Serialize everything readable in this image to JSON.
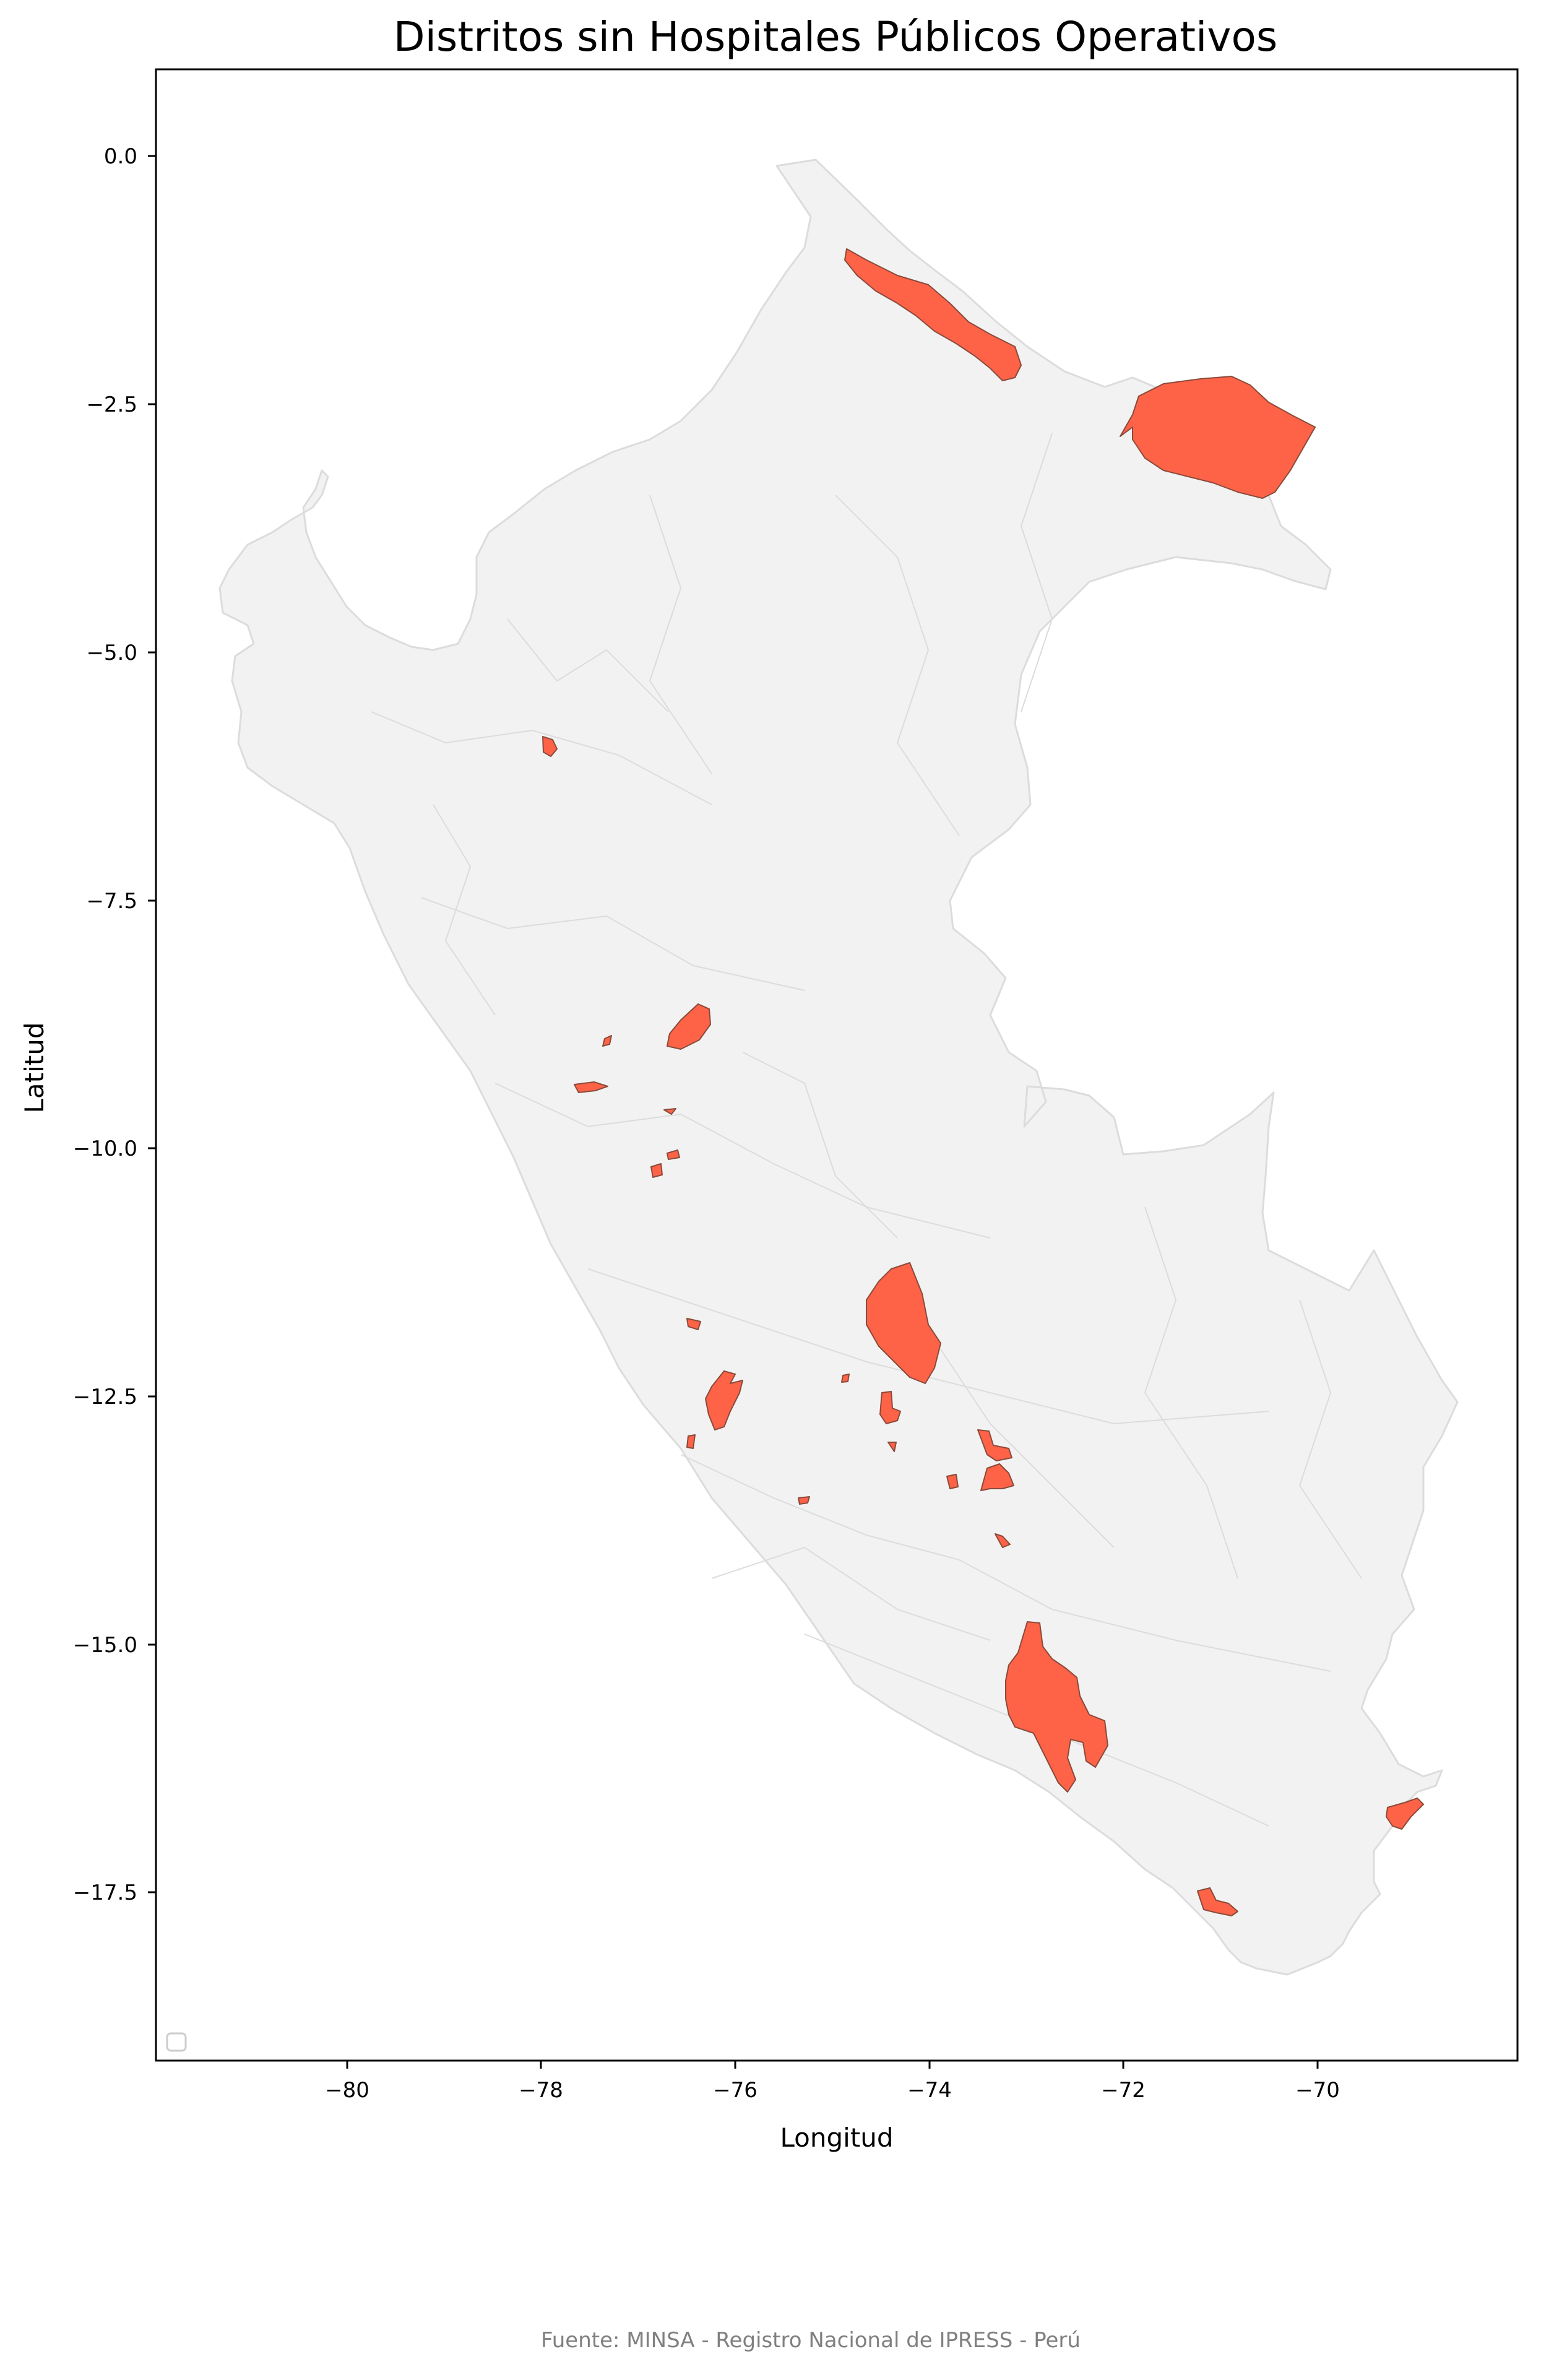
{
  "title": "Distritos sin Hospitales Públicos Operativos",
  "xlabel": "Longitud",
  "ylabel": "Latitud",
  "source": "Fuente: MINSA - Registro Nacional de IPRESS - Perú",
  "map": {
    "type": "choropleth",
    "projection": "plate-carree (lon/lat)",
    "xlim": [
      -81.95,
      -68.0
    ],
    "ylim": [
      -19.15,
      0.88
    ],
    "x_ticks": [
      {
        "value": -80,
        "label": "−80"
      },
      {
        "value": -78,
        "label": "−78"
      },
      {
        "value": -76,
        "label": "−76"
      },
      {
        "value": -74,
        "label": "−74"
      },
      {
        "value": -72,
        "label": "−72"
      },
      {
        "value": -70,
        "label": "−70"
      }
    ],
    "y_ticks": [
      {
        "value": 0.0,
        "label": "0.0"
      },
      {
        "value": -2.5,
        "label": "−2.5"
      },
      {
        "value": -5.0,
        "label": "−5.0"
      },
      {
        "value": -7.5,
        "label": "−7.5"
      },
      {
        "value": -10.0,
        "label": "−10.0"
      },
      {
        "value": -12.5,
        "label": "−12.5"
      },
      {
        "value": -15.0,
        "label": "−15.0"
      },
      {
        "value": -17.5,
        "label": "−17.5"
      }
    ],
    "colors": {
      "base_fill": "#f2f2f2",
      "base_edge": "#dcdcdc",
      "highlight_fill": "#ff6347",
      "highlight_edge": "#8a4a3a"
    },
    "legend": {
      "placement": "lower-left",
      "entries": []
    },
    "highlighted_districts": [
      {
        "name": "northern-loreto-strip",
        "centroid": [
          -74.15,
          -1.6
        ]
      },
      {
        "name": "northeast-loreto-block",
        "centroid": [
          -71.25,
          -2.8
        ]
      },
      {
        "name": "amazonas-small",
        "centroid": [
          -77.95,
          -5.9
        ]
      },
      {
        "name": "huanuco-north",
        "centroid": [
          -76.5,
          -8.8
        ]
      },
      {
        "name": "ancash-west",
        "centroid": [
          -77.4,
          -9.35
        ]
      },
      {
        "name": "ancash-small",
        "centroid": [
          -77.3,
          -8.85
        ]
      },
      {
        "name": "huanuco-small-1",
        "centroid": [
          -76.7,
          -9.5
        ]
      },
      {
        "name": "huanuco-small-2",
        "centroid": [
          -76.65,
          -10.0
        ]
      },
      {
        "name": "lima-north-small",
        "centroid": [
          -76.9,
          -10.2
        ]
      },
      {
        "name": "junin-central",
        "centroid": [
          -74.35,
          -11.7
        ]
      },
      {
        "name": "lima-coast-small",
        "centroid": [
          -76.45,
          -11.75
        ]
      },
      {
        "name": "lima-south",
        "centroid": [
          -76.2,
          -12.45
        ]
      },
      {
        "name": "lima-coast-south",
        "centroid": [
          -76.45,
          -12.95
        ]
      },
      {
        "name": "junin-small",
        "centroid": [
          -75.4,
          -12.35
        ]
      },
      {
        "name": "huancavelica-1",
        "centroid": [
          -74.5,
          -12.65
        ]
      },
      {
        "name": "huancavelica-2",
        "centroid": [
          -74.45,
          -12.95
        ]
      },
      {
        "name": "ayacucho-north",
        "centroid": [
          -73.45,
          -12.95
        ]
      },
      {
        "name": "ayacucho-center",
        "centroid": [
          -73.35,
          -13.35
        ]
      },
      {
        "name": "ayacucho-small",
        "centroid": [
          -73.75,
          -13.4
        ]
      },
      {
        "name": "ica-small",
        "centroid": [
          -75.35,
          -13.6
        ]
      },
      {
        "name": "apurimac-small",
        "centroid": [
          -73.3,
          -14.05
        ]
      },
      {
        "name": "arequipa-cluster",
        "centroid": [
          -72.8,
          -15.7
        ]
      },
      {
        "name": "puno-south",
        "centroid": [
          -69.1,
          -16.65
        ]
      },
      {
        "name": "tacna-small",
        "centroid": [
          -71.15,
          -17.65
        ]
      }
    ]
  }
}
